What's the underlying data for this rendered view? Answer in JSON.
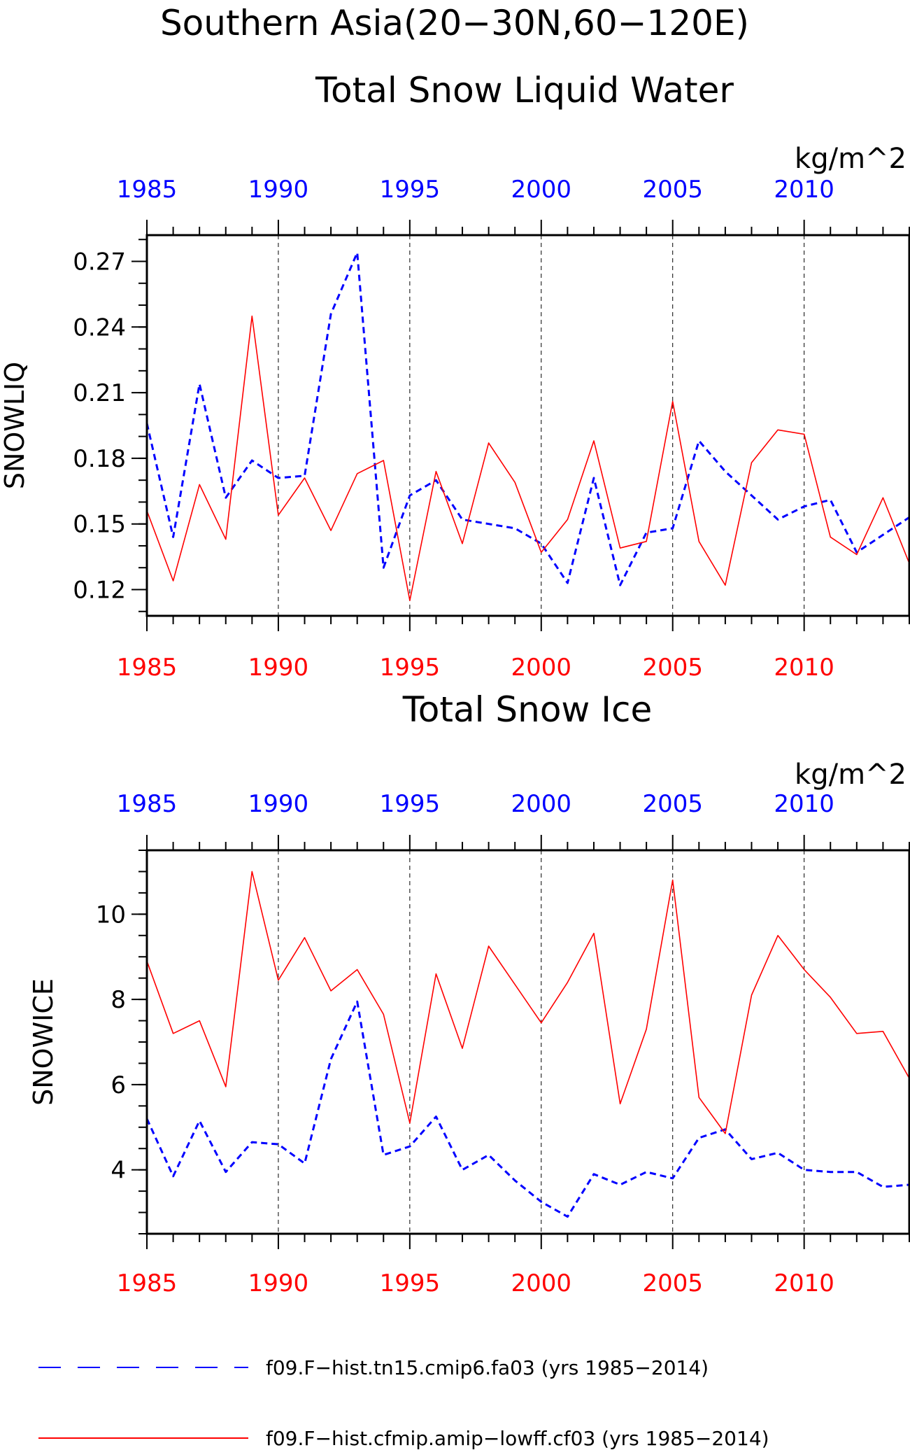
{
  "figure": {
    "title_line1": "Southern Asia(20−30N,60−120E)",
    "legend": [
      {
        "label": "f09.F−hist.tn15.cmip6.fa03 (yrs 1985−2014)",
        "color": "#0000ff",
        "style": "dashed"
      },
      {
        "label": "f09.F−hist.cfmip.amip−lowff.cf03 (yrs 1985−2014)",
        "color": "#ff0000",
        "style": "solid"
      }
    ]
  },
  "chart_data": [
    {
      "type": "line",
      "title": "Total Snow Liquid Water",
      "units": "kg/m^2",
      "ylabel": "SNOWLIQ",
      "xlim": [
        1985,
        2014
      ],
      "ylim": [
        0.108,
        0.282
      ],
      "xticks": [
        1985,
        1990,
        1995,
        2000,
        2005,
        2010
      ],
      "yticks": [
        0.12,
        0.15,
        0.18,
        0.21,
        0.24,
        0.27
      ],
      "ytick_labels": [
        "0.12",
        "0.15",
        "0.18",
        "0.21",
        "0.24",
        "0.27"
      ],
      "vertical_grid": [
        1990,
        1995,
        2000,
        2005,
        2010
      ],
      "x": [
        1985,
        1986,
        1987,
        1988,
        1989,
        1990,
        1991,
        1992,
        1993,
        1994,
        1995,
        1996,
        1997,
        1998,
        1999,
        2000,
        2001,
        2002,
        2003,
        2004,
        2005,
        2006,
        2007,
        2008,
        2009,
        2010,
        2011,
        2012,
        2013,
        2014
      ],
      "series": [
        {
          "color": "#0000ff",
          "style": "dashed",
          "values": [
            0.196,
            0.144,
            0.214,
            0.162,
            0.179,
            0.171,
            0.172,
            0.246,
            0.274,
            0.13,
            0.163,
            0.17,
            0.152,
            0.15,
            0.148,
            0.141,
            0.123,
            0.171,
            0.122,
            0.146,
            0.148,
            0.188,
            0.174,
            0.163,
            0.152,
            0.158,
            0.161,
            0.137,
            0.145,
            0.153
          ]
        },
        {
          "color": "#ff0000",
          "style": "solid",
          "values": [
            0.156,
            0.124,
            0.168,
            0.143,
            0.245,
            0.154,
            0.171,
            0.147,
            0.173,
            0.179,
            0.115,
            0.174,
            0.141,
            0.187,
            0.169,
            0.137,
            0.152,
            0.188,
            0.139,
            0.142,
            0.206,
            0.142,
            0.122,
            0.178,
            0.193,
            0.191,
            0.144,
            0.136,
            0.162,
            0.132
          ]
        }
      ]
    },
    {
      "type": "line",
      "title": "Total Snow Ice",
      "units": "kg/m^2",
      "ylabel": "SNOWICE",
      "xlim": [
        1985,
        2014
      ],
      "ylim": [
        2.5,
        11.5
      ],
      "xticks": [
        1985,
        1990,
        1995,
        2000,
        2005,
        2010
      ],
      "yticks": [
        4,
        6,
        8,
        10
      ],
      "ytick_labels": [
        "4",
        "6",
        "8",
        "10"
      ],
      "vertical_grid": [
        1990,
        1995,
        2000,
        2005,
        2010
      ],
      "x": [
        1985,
        1986,
        1987,
        1988,
        1989,
        1990,
        1991,
        1992,
        1993,
        1994,
        1995,
        1996,
        1997,
        1998,
        1999,
        2000,
        2001,
        2002,
        2003,
        2004,
        2005,
        2006,
        2007,
        2008,
        2009,
        2010,
        2011,
        2012,
        2013,
        2014
      ],
      "series": [
        {
          "color": "#0000ff",
          "style": "dashed",
          "values": [
            5.2,
            3.85,
            5.15,
            3.95,
            4.65,
            4.6,
            4.15,
            6.6,
            7.95,
            4.35,
            4.55,
            5.25,
            4.0,
            4.35,
            3.75,
            3.25,
            2.9,
            3.9,
            3.65,
            3.95,
            3.8,
            4.75,
            4.95,
            4.25,
            4.4,
            4.0,
            3.95,
            3.95,
            3.6,
            3.65
          ]
        },
        {
          "color": "#ff0000",
          "style": "solid",
          "values": [
            8.9,
            7.2,
            7.5,
            5.95,
            11.0,
            8.45,
            9.45,
            8.2,
            8.7,
            7.65,
            5.1,
            8.6,
            6.85,
            9.25,
            8.35,
            7.45,
            8.4,
            9.55,
            5.55,
            7.3,
            10.8,
            5.7,
            4.85,
            8.1,
            9.5,
            8.7,
            8.05,
            7.2,
            7.25,
            6.15
          ]
        }
      ]
    }
  ]
}
